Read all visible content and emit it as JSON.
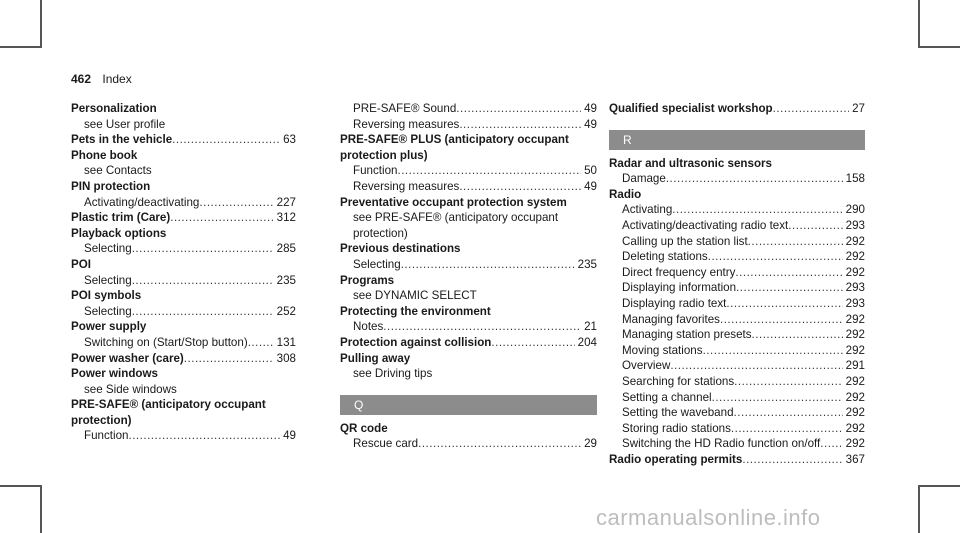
{
  "header": {
    "page_number": "462",
    "section": "Index"
  },
  "col1": [
    {
      "title": "Personalization",
      "sub": [
        {
          "text": "see User profile"
        }
      ]
    },
    {
      "title": "Pets in the vehicle",
      "page": "63"
    },
    {
      "title": "Phone book",
      "sub": [
        {
          "text": "see Contacts"
        }
      ]
    },
    {
      "title": "PIN protection",
      "sub": [
        {
          "text": "Activating/deactivating",
          "page": "227"
        }
      ]
    },
    {
      "title": "Plastic trim (Care)",
      "page": "312"
    },
    {
      "title": "Playback options",
      "sub": [
        {
          "text": "Selecting",
          "page": "285"
        }
      ]
    },
    {
      "title": "POI",
      "sub": [
        {
          "text": "Selecting",
          "page": "235"
        }
      ]
    },
    {
      "title": "POI symbols",
      "sub": [
        {
          "text": "Selecting",
          "page": "252"
        }
      ]
    },
    {
      "title": "Power supply",
      "sub": [
        {
          "text": "Switching on (Start/Stop button)",
          "page": "131"
        }
      ]
    },
    {
      "title": "Power washer (care)",
      "page": "308"
    },
    {
      "title": "Power windows",
      "sub": [
        {
          "text": "see Side windows"
        }
      ]
    },
    {
      "title": "PRE-SAFE® (anticipatory occupant protection)",
      "sub": [
        {
          "text": "Function",
          "page": "49"
        }
      ]
    }
  ],
  "col2": {
    "top_sub": [
      {
        "text": "PRE-SAFE® Sound",
        "page": "49"
      },
      {
        "text": "Reversing measures",
        "page": "49"
      }
    ],
    "entries": [
      {
        "title": "PRE-SAFE® PLUS (anticipatory occupant protection plus)",
        "sub": [
          {
            "text": "Function",
            "page": "50"
          },
          {
            "text": "Reversing measures",
            "page": "49"
          }
        ]
      },
      {
        "title": "Preventative occupant protection system",
        "sub": [
          {
            "text": "see PRE-SAFE® (anticipatory occupant protection)"
          }
        ]
      },
      {
        "title": "Previous destinations",
        "sub": [
          {
            "text": "Selecting",
            "page": "235"
          }
        ]
      },
      {
        "title": "Programs",
        "sub": [
          {
            "text": "see DYNAMIC SELECT"
          }
        ]
      },
      {
        "title": "Protecting the environment",
        "sub": [
          {
            "text": "Notes",
            "page": "21"
          }
        ]
      },
      {
        "title": "Protection against collision",
        "page": "204"
      },
      {
        "title": "Pulling away",
        "sub": [
          {
            "text": "see Driving tips"
          }
        ]
      }
    ],
    "letter_q": "Q",
    "q_entries": [
      {
        "title": "QR code",
        "sub": [
          {
            "text": "Rescue card",
            "page": "29"
          }
        ]
      }
    ]
  },
  "col3": {
    "top_entries": [
      {
        "title": "Qualified specialist workshop",
        "page": "27"
      }
    ],
    "letter_r": "R",
    "entries": [
      {
        "title": "Radar and ultrasonic sensors",
        "sub": [
          {
            "text": "Damage",
            "page": "158"
          }
        ]
      },
      {
        "title": "Radio",
        "sub": [
          {
            "text": "Activating",
            "page": "290"
          },
          {
            "text": "Activating/deactivating radio text",
            "page": "293"
          },
          {
            "text": "Calling up the station list",
            "page": "292"
          },
          {
            "text": "Deleting stations",
            "page": "292"
          },
          {
            "text": "Direct frequency entry",
            "page": "292"
          },
          {
            "text": "Displaying information",
            "page": "293"
          },
          {
            "text": "Displaying radio text",
            "page": "293"
          },
          {
            "text": "Managing favorites",
            "page": "292"
          },
          {
            "text": "Managing station presets",
            "page": "292"
          },
          {
            "text": "Moving stations",
            "page": "292"
          },
          {
            "text": "Overview",
            "page": "291"
          },
          {
            "text": "Searching for stations",
            "page": "292"
          },
          {
            "text": "Setting a channel",
            "page": "292"
          },
          {
            "text": "Setting the waveband",
            "page": "292"
          },
          {
            "text": "Storing radio stations",
            "page": "292"
          },
          {
            "text": "Switching the HD Radio function on/off",
            "page": "292"
          }
        ]
      },
      {
        "title": "Radio operating permits",
        "page": "367"
      }
    ]
  },
  "watermark": "carmanualsonline.info",
  "colors": {
    "letter_bar": "#8c8c8c",
    "crop_marks": "#555555"
  }
}
